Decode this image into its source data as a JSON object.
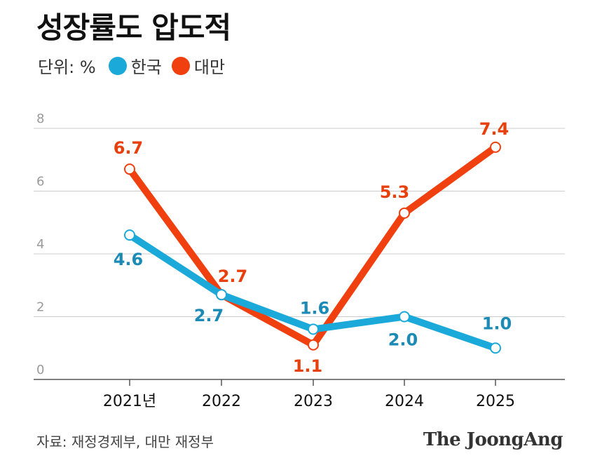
{
  "title": "성장률도 압도적",
  "legend": {
    "unit": "단위: %",
    "items": [
      {
        "name": "한국",
        "color": "#1ba9d9"
      },
      {
        "name": "대만",
        "color": "#f0400f"
      }
    ]
  },
  "source": "자료: 재정경제부, 대만 재정부",
  "logo": "The JoongAng",
  "chart_data": {
    "type": "line",
    "categories": [
      "2021년",
      "2022",
      "2023",
      "2024",
      "2025"
    ],
    "ylim": [
      0,
      8
    ],
    "yticks": [
      0,
      2,
      4,
      6,
      8
    ],
    "grid": true,
    "series": [
      {
        "name": "대만",
        "color": "#f0400f",
        "label_color": "#e8400c",
        "values": [
          6.7,
          2.7,
          1.1,
          5.3,
          7.4
        ],
        "labels": [
          "6.7",
          "2.7",
          "1.1",
          "5.3",
          "7.4"
        ]
      },
      {
        "name": "한국",
        "color": "#1ba9d9",
        "label_color": "#1b8bb5",
        "values": [
          4.6,
          2.7,
          1.6,
          2.0,
          1.0
        ],
        "labels": [
          "4.6",
          "2.7",
          "1.6",
          "2.0",
          "1.0"
        ]
      }
    ]
  }
}
